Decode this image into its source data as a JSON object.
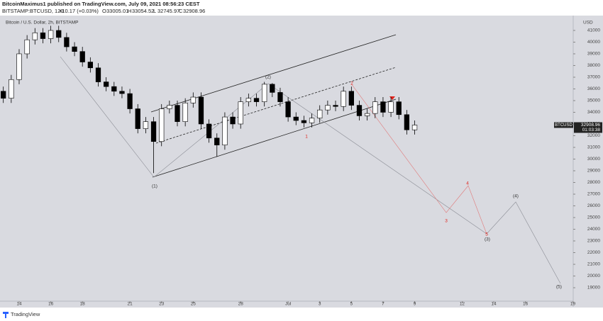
{
  "header": {
    "publisher": "BitcoinMaximus1 published on TradingView.com, July 09, 2021 08:56:23 CEST",
    "symbol": "BITSTAMP:BTCUSD, 120",
    "change": "+10.17 (+0.03%)",
    "ohlc": [
      "O",
      "33005.01",
      "H",
      "33054.52",
      "L",
      "32745.97",
      "C",
      "32908.96"
    ]
  },
  "footer": {
    "brand": "TradingView"
  },
  "chart_data": {
    "type": "candlestick",
    "title": "Bitcoin / U.S. Dollar, 2h, BITSTAMP",
    "x": [
      -1,
      -0.5,
      0,
      0.5,
      1,
      1.5,
      2,
      2.5,
      3,
      3.5,
      4,
      4.5,
      5,
      5.5,
      6,
      6.5,
      7,
      7.5,
      8,
      8.5,
      9,
      9.5,
      10,
      10.5,
      11,
      11.5,
      12,
      12.5,
      13,
      13.5,
      14,
      14.5,
      15,
      15.5,
      16,
      16.5,
      17,
      17.5,
      18,
      18.5,
      19,
      19.5,
      20,
      20.5,
      21,
      21.5,
      22,
      22.5,
      23,
      23.5,
      24,
      24.5,
      25
    ],
    "open": [
      35800,
      35200,
      36800,
      39000,
      40200,
      40800,
      40300,
      41000,
      40400,
      39600,
      39200,
      38300,
      37800,
      36600,
      36200,
      35800,
      35600,
      34300,
      32600,
      33200,
      31500,
      34300,
      34600,
      33200,
      34800,
      35300,
      33000,
      31800,
      31200,
      33600,
      33000,
      34900,
      35200,
      34900,
      36400,
      35700,
      34900,
      33600,
      33300,
      33100,
      33500,
      34200,
      34600,
      34500,
      35800,
      34600,
      33700,
      33900,
      34900,
      34000,
      34900,
      33800,
      32500
    ],
    "high": [
      36200,
      37200,
      39400,
      40600,
      41200,
      41200,
      41400,
      41400,
      40800,
      40000,
      39600,
      38700,
      38200,
      37000,
      36600,
      36200,
      36000,
      34700,
      33600,
      33600,
      34700,
      35000,
      35000,
      35200,
      35700,
      35700,
      33400,
      32200,
      34000,
      34000,
      35300,
      35600,
      35600,
      36600,
      36500,
      36100,
      35300,
      34000,
      33700,
      33900,
      34600,
      35000,
      35000,
      36200,
      36200,
      35000,
      34300,
      35300,
      35300,
      35300,
      35300,
      34200,
      33300
    ],
    "low": [
      34800,
      34800,
      36400,
      38600,
      39800,
      39900,
      39900,
      40000,
      39200,
      38800,
      37900,
      37400,
      36200,
      35800,
      35400,
      35200,
      33900,
      32200,
      32200,
      28800,
      31100,
      33900,
      32800,
      32800,
      34400,
      32600,
      31400,
      30200,
      30800,
      32600,
      32600,
      34500,
      34500,
      34500,
      35300,
      34500,
      33200,
      32900,
      32700,
      32700,
      33100,
      33800,
      34100,
      34100,
      34200,
      33300,
      33300,
      33500,
      33600,
      33600,
      33400,
      32100,
      32100
    ],
    "close": [
      35200,
      36800,
      39000,
      40200,
      40800,
      40300,
      41000,
      40400,
      39600,
      39200,
      38300,
      37800,
      36600,
      36200,
      35800,
      35600,
      34300,
      32600,
      33200,
      31500,
      34300,
      34600,
      33200,
      34800,
      35300,
      33000,
      31800,
      31200,
      33600,
      33000,
      34900,
      35200,
      34900,
      36400,
      35700,
      34900,
      33600,
      33300,
      33100,
      33500,
      34200,
      34600,
      34500,
      35800,
      34600,
      33700,
      33900,
      34900,
      34000,
      34900,
      33800,
      32500,
      32909
    ],
    "up_color": "#ffffff",
    "down_color": "#000000",
    "xlim": [
      -1.21,
      35.02
    ],
    "ylim": [
      17850,
      42270
    ],
    "xticks": [
      {
        "value": 0,
        "label": "14"
      },
      {
        "value": 2,
        "label": "16"
      },
      {
        "value": 4,
        "label": "18"
      },
      {
        "value": 7,
        "label": "21"
      },
      {
        "value": 9,
        "label": "23"
      },
      {
        "value": 11,
        "label": "25"
      },
      {
        "value": 14,
        "label": "28"
      },
      {
        "value": 17,
        "label": "Jul"
      },
      {
        "value": 19,
        "label": "3"
      },
      {
        "value": 21,
        "label": "5"
      },
      {
        "value": 23,
        "label": "7"
      },
      {
        "value": 25,
        "label": "9"
      },
      {
        "value": 28,
        "label": "12"
      },
      {
        "value": 30,
        "label": "14"
      },
      {
        "value": 32,
        "label": "16"
      },
      {
        "value": 35,
        "label": "19"
      }
    ],
    "yticks": [
      19000,
      20000,
      21000,
      22000,
      23000,
      24000,
      25000,
      26000,
      27000,
      28000,
      29000,
      30000,
      31000,
      32000,
      33000,
      34000,
      35000,
      36000,
      37000,
      38000,
      39000,
      40000,
      41000
    ],
    "y_unit": "USD",
    "last_price": {
      "symbol": "BTCUSD",
      "value": 32908.96,
      "countdown": "01:03:38"
    },
    "annotations": [
      "(1)",
      "(2)",
      "1",
      "2",
      "3",
      "4",
      "5",
      "(3)",
      "(4)",
      "(5)"
    ]
  }
}
